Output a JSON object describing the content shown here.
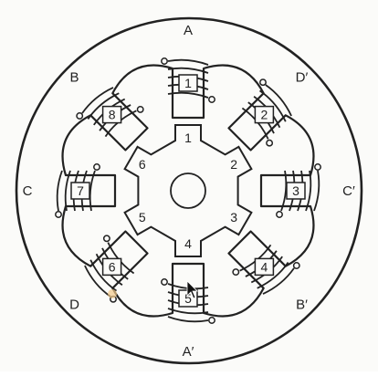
{
  "colors": {
    "background": "#fbfbf9",
    "ink": "#222222",
    "cursor_highlight": "#f2c98a"
  },
  "stator": {
    "pole_letters": [
      "A",
      "D′",
      "C′",
      "B′",
      "A′",
      "D",
      "C",
      "B"
    ],
    "pole_numbers": [
      "1",
      "2",
      "3",
      "4",
      "5",
      "6",
      "7",
      "8"
    ]
  },
  "rotor": {
    "tooth_numbers": [
      "1",
      "2",
      "3",
      "4",
      "5",
      "6"
    ]
  },
  "icons": {
    "cursor": "mouse-pointer-icon"
  }
}
